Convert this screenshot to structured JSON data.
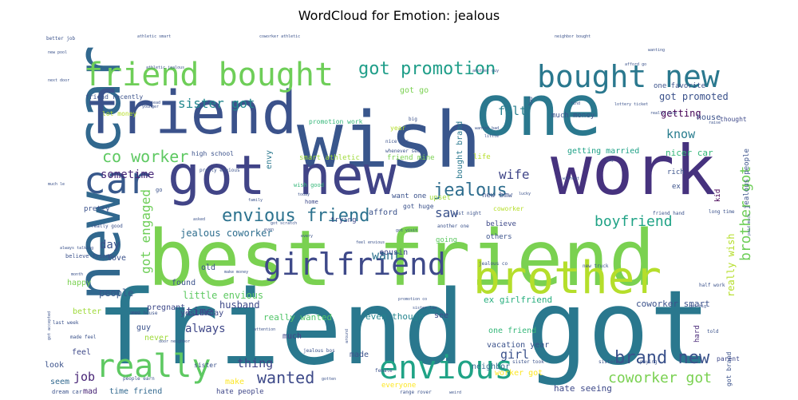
{
  "chart_data": {
    "type": "wordcloud",
    "title": "WordCloud for Emotion: jealous",
    "palette": "viridis",
    "words": [
      {
        "text": "friend got",
        "weight": 100,
        "color": "#2a788e"
      },
      {
        "text": "best friend",
        "weight": 88,
        "color": "#7ad151"
      },
      {
        "text": "wish",
        "weight": 82,
        "color": "#39568c"
      },
      {
        "text": "work",
        "weight": 78,
        "color": "#46327e"
      },
      {
        "text": "one",
        "weight": 74,
        "color": "#2a788e"
      },
      {
        "text": "new car",
        "weight": 68,
        "color": "#31688e"
      },
      {
        "text": "friend",
        "weight": 66,
        "color": "#3b528b"
      },
      {
        "text": "got new",
        "weight": 62,
        "color": "#414487"
      },
      {
        "text": "brother",
        "weight": 48,
        "color": "#b5de2b"
      },
      {
        "text": "envious",
        "weight": 34,
        "color": "#20a386"
      },
      {
        "text": "girlfriend",
        "weight": 32,
        "color": "#3e4989"
      },
      {
        "text": "friend bought",
        "weight": 36,
        "color": "#6ece58"
      },
      {
        "text": "bought new",
        "weight": 34,
        "color": "#2a788e"
      },
      {
        "text": "really",
        "weight": 34,
        "color": "#5ec962"
      },
      {
        "text": "car",
        "weight": 40,
        "color": "#38598c"
      },
      {
        "text": "got promotion",
        "weight": 22,
        "color": "#1f9e89"
      },
      {
        "text": "envious friend",
        "weight": 22,
        "color": "#2c728e"
      },
      {
        "text": "brand new",
        "weight": 20,
        "color": "#3b528b"
      },
      {
        "text": "jealous",
        "weight": 22,
        "color": "#2e6d8e"
      },
      {
        "text": "wanted",
        "weight": 20,
        "color": "#3e4a89"
      },
      {
        "text": "co worker",
        "weight": 18,
        "color": "#5ec962"
      },
      {
        "text": "brother got",
        "weight": 18,
        "color": "#6ece58"
      },
      {
        "text": "coworker got",
        "weight": 17,
        "color": "#7ad151"
      },
      {
        "text": "boyfriend",
        "weight": 17,
        "color": "#20a386"
      },
      {
        "text": "got engaged",
        "weight": 16,
        "color": "#6ece58"
      },
      {
        "text": "sister got",
        "weight": 16,
        "color": "#23888e"
      },
      {
        "text": "wife",
        "weight": 16,
        "color": "#404688"
      },
      {
        "text": "saw",
        "weight": 16,
        "color": "#3b528b"
      },
      {
        "text": "felt",
        "weight": 15,
        "color": "#277f8e"
      },
      {
        "text": "know",
        "weight": 15,
        "color": "#287c8e"
      },
      {
        "text": "girl",
        "weight": 15,
        "color": "#3b528b"
      },
      {
        "text": "thing",
        "weight": 15,
        "color": "#414487"
      },
      {
        "text": "job",
        "weight": 15,
        "color": "#482576"
      },
      {
        "text": "want",
        "weight": 15,
        "color": "#2c728e"
      },
      {
        "text": "always",
        "weight": 14,
        "color": "#3f4788"
      },
      {
        "text": "time",
        "weight": 14,
        "color": "#404688"
      },
      {
        "text": "day",
        "weight": 14,
        "color": "#3b528b"
      },
      {
        "text": "sometime",
        "weight": 14,
        "color": "#482878"
      },
      {
        "text": "jealous coworker",
        "weight": 12,
        "color": "#2e6e8e"
      },
      {
        "text": "husband",
        "weight": 12,
        "color": "#3e4989"
      },
      {
        "text": "people",
        "weight": 12,
        "color": "#38598c"
      },
      {
        "text": "getting",
        "weight": 12,
        "color": "#440154"
      },
      {
        "text": "got promoted",
        "weight": 12,
        "color": "#3b528b"
      },
      {
        "text": "really wish",
        "weight": 12,
        "color": "#b5de2b"
      },
      {
        "text": "little envious",
        "weight": 12,
        "color": "#5ec962"
      },
      {
        "text": "really wanted",
        "weight": 11,
        "color": "#52c569"
      },
      {
        "text": "even though",
        "weight": 11,
        "color": "#25848e"
      },
      {
        "text": "ex girlfriend",
        "weight": 11,
        "color": "#29af7f"
      },
      {
        "text": "coworker smart",
        "weight": 11,
        "color": "#3b528b"
      },
      {
        "text": "nicer car",
        "weight": 11,
        "color": "#35b779"
      },
      {
        "text": "getting married",
        "weight": 10,
        "color": "#1fa187"
      },
      {
        "text": "hate seeing",
        "weight": 11,
        "color": "#3e4989"
      },
      {
        "text": "worker got",
        "weight": 10,
        "color": "#fde725"
      },
      {
        "text": "one friend",
        "weight": 10,
        "color": "#35b779"
      },
      {
        "text": "vacation year",
        "weight": 10,
        "color": "#3b528b"
      },
      {
        "text": "neighbor",
        "weight": 10,
        "color": "#2e6e8e"
      },
      {
        "text": "everyone",
        "weight": 9,
        "color": "#fde725"
      },
      {
        "text": "time friend",
        "weight": 10,
        "color": "#31688e"
      },
      {
        "text": "hate people",
        "weight": 9,
        "color": "#3f4788"
      },
      {
        "text": "make",
        "weight": 10,
        "color": "#fde725"
      },
      {
        "text": "mad",
        "weight": 10,
        "color": "#482576"
      },
      {
        "text": "seem",
        "weight": 10,
        "color": "#31688e"
      },
      {
        "text": "look",
        "weight": 10,
        "color": "#3b528b"
      },
      {
        "text": "feel",
        "weight": 10,
        "color": "#3e4989"
      },
      {
        "text": "never",
        "weight": 10,
        "color": "#9fda3a"
      },
      {
        "text": "guy",
        "weight": 10,
        "color": "#3b528b"
      },
      {
        "text": "better",
        "weight": 10,
        "color": "#9fda3a"
      },
      {
        "text": "happy",
        "weight": 10,
        "color": "#7ad151"
      },
      {
        "text": "love",
        "weight": 10,
        "color": "#3b528b"
      },
      {
        "text": "pregnant",
        "weight": 10,
        "color": "#3e4989"
      },
      {
        "text": "found",
        "weight": 10,
        "color": "#3b528b"
      },
      {
        "text": "old",
        "weight": 10,
        "color": "#3b528b"
      },
      {
        "text": "yesterday",
        "weight": 10,
        "color": "#3e4989"
      },
      {
        "text": "much",
        "weight": 10,
        "color": "#404688"
      },
      {
        "text": "made",
        "weight": 10,
        "color": "#3b528b"
      },
      {
        "text": "see",
        "weight": 10,
        "color": "#3e4989"
      },
      {
        "text": "cousin",
        "weight": 10,
        "color": "#3e4989"
      },
      {
        "text": "afford",
        "weight": 10,
        "color": "#3b528b"
      },
      {
        "text": "want one",
        "weight": 9,
        "color": "#3b528b"
      },
      {
        "text": "believe",
        "weight": 9,
        "color": "#3e4989"
      },
      {
        "text": "others",
        "weight": 9,
        "color": "#3b528b"
      },
      {
        "text": "going",
        "weight": 9,
        "color": "#5ec962"
      },
      {
        "text": "trying",
        "weight": 9,
        "color": "#3e4989"
      },
      {
        "text": "new bmw",
        "weight": 9,
        "color": "#3b528b"
      },
      {
        "text": "house",
        "weight": 10,
        "color": "#3b528b"
      },
      {
        "text": "bought brand",
        "weight": 10,
        "color": "#2a788e"
      },
      {
        "text": "got go",
        "weight": 10,
        "color": "#7ad151"
      },
      {
        "text": "much money",
        "weight": 9,
        "color": "#3b528b"
      },
      {
        "text": "high school",
        "weight": 8,
        "color": "#3b528b"
      },
      {
        "text": "smart athletic",
        "weight": 9,
        "color": "#9fda3a"
      },
      {
        "text": "friend mine",
        "weight": 9,
        "color": "#7ad151"
      },
      {
        "text": "life",
        "weight": 9,
        "color": "#b5de2b"
      },
      {
        "text": "envy",
        "weight": 10,
        "color": "#2a788e"
      },
      {
        "text": "jealous people",
        "weight": 9,
        "color": "#3b528b"
      },
      {
        "text": "pretty",
        "weight": 9,
        "color": "#3b528b"
      },
      {
        "text": "rich",
        "weight": 9,
        "color": "#3b528b"
      },
      {
        "text": "kid",
        "weight": 9,
        "color": "#440154"
      },
      {
        "text": "hard",
        "weight": 9,
        "color": "#482878"
      },
      {
        "text": "ex",
        "weight": 9,
        "color": "#3b528b"
      },
      {
        "text": "upset",
        "weight": 9,
        "color": "#9fda3a"
      },
      {
        "text": "one favorite",
        "weight": 9,
        "color": "#3b528b"
      },
      {
        "text": "thought",
        "weight": 8,
        "color": "#3e4989"
      },
      {
        "text": "got brand",
        "weight": 8,
        "color": "#3b528b"
      },
      {
        "text": "parent",
        "weight": 8,
        "color": "#3e4989"
      },
      {
        "text": "sister",
        "weight": 8,
        "color": "#3b528b"
      },
      {
        "text": "year",
        "weight": 8,
        "color": "#b5de2b"
      },
      {
        "text": "got huge",
        "weight": 8,
        "color": "#3b528b"
      },
      {
        "text": "coworker",
        "weight": 8,
        "color": "#b5de2b"
      },
      {
        "text": "promotion work",
        "weight": 8,
        "color": "#35b779"
      },
      {
        "text": "lot money",
        "weight": 8,
        "color": "#b5de2b"
      },
      {
        "text": "friend recently",
        "weight": 8,
        "color": "#3b528b"
      },
      {
        "text": "home",
        "weight": 7,
        "color": "#3e4989"
      },
      {
        "text": "wish good",
        "weight": 7,
        "color": "#35b779"
      },
      {
        "text": "go",
        "weight": 7,
        "color": "#3b528b"
      },
      {
        "text": "really good",
        "weight": 6,
        "color": "#3b528b"
      },
      {
        "text": "believe friend",
        "weight": 7,
        "color": "#3b528b"
      },
      {
        "text": "pretty envious",
        "weight": 6,
        "color": "#3b528b"
      },
      {
        "text": "nice car",
        "weight": 6,
        "color": "#3b528b"
      },
      {
        "text": "whenever see",
        "weight": 6,
        "color": "#3b528b"
      },
      {
        "text": "last night",
        "weight": 6,
        "color": "#3b528b"
      },
      {
        "text": "another one",
        "weight": 6,
        "color": "#3b528b"
      },
      {
        "text": "jealous co",
        "weight": 6,
        "color": "#3b528b"
      },
      {
        "text": "new truck",
        "weight": 6,
        "color": "#3b528b"
      },
      {
        "text": "friend hand",
        "weight": 6,
        "color": "#3b528b"
      },
      {
        "text": "long time",
        "weight": 6,
        "color": "#3b528b"
      },
      {
        "text": "new house",
        "weight": 6,
        "color": "#3b528b"
      },
      {
        "text": "last week",
        "weight": 6,
        "color": "#3b528b"
      },
      {
        "text": "made feel",
        "weight": 6,
        "color": "#3b528b"
      },
      {
        "text": "dream car",
        "weight": 7,
        "color": "#3b528b"
      },
      {
        "text": "people earn",
        "weight": 6,
        "color": "#3b528b"
      },
      {
        "text": "range rover",
        "weight": 6,
        "color": "#3b528b"
      },
      {
        "text": "sister took",
        "weight": 6,
        "color": "#3b528b"
      },
      {
        "text": "sister went",
        "weight": 6,
        "color": "#3b528b"
      },
      {
        "text": "half work",
        "weight": 6,
        "color": "#3b528b"
      },
      {
        "text": "got big",
        "weight": 5,
        "color": "#3b528b"
      },
      {
        "text": "told",
        "weight": 6,
        "color": "#3b528b"
      },
      {
        "text": "paying",
        "weight": 6,
        "color": "#3b528b"
      },
      {
        "text": "jealous bos",
        "weight": 6,
        "color": "#3b528b"
      },
      {
        "text": "female",
        "weight": 6,
        "color": "#3b528b"
      },
      {
        "text": "better job",
        "weight": 6,
        "color": "#3b528b"
      },
      {
        "text": "new pool",
        "weight": 5,
        "color": "#3b528b"
      },
      {
        "text": "next door",
        "weight": 5,
        "color": "#3b528b"
      },
      {
        "text": "younger",
        "weight": 5,
        "color": "#3b528b"
      },
      {
        "text": "instead",
        "weight": 5,
        "color": "#3b528b"
      },
      {
        "text": "athletic smart",
        "weight": 5,
        "color": "#3b528b"
      },
      {
        "text": "coworker athletic",
        "weight": 5,
        "color": "#3b528b"
      },
      {
        "text": "neighbor bought",
        "weight": 5,
        "color": "#3b528b"
      },
      {
        "text": "wanting",
        "weight": 5,
        "color": "#3b528b"
      },
      {
        "text": "afford go",
        "weight": 5,
        "color": "#3b528b"
      },
      {
        "text": "another guy",
        "weight": 5,
        "color": "#3b528b"
      },
      {
        "text": "bad",
        "weight": 6,
        "color": "#3b528b"
      },
      {
        "text": "find",
        "weight": 5,
        "color": "#3b528b"
      },
      {
        "text": "lottery ticket",
        "weight": 5,
        "color": "#3b528b"
      },
      {
        "text": "really nice",
        "weight": 5,
        "color": "#3b528b"
      },
      {
        "text": "raise",
        "weight": 5,
        "color": "#3b528b"
      },
      {
        "text": "wanted bad",
        "weight": 5,
        "color": "#3b528b"
      },
      {
        "text": "big",
        "weight": 6,
        "color": "#3b528b"
      },
      {
        "text": "little",
        "weight": 5,
        "color": "#3b528b"
      },
      {
        "text": "without",
        "weight": 5,
        "color": "#3b528b"
      },
      {
        "text": "buy",
        "weight": 5,
        "color": "#3b528b"
      },
      {
        "text": "lucky",
        "weight": 5,
        "color": "#3b528b"
      },
      {
        "text": "today",
        "weight": 5,
        "color": "#3b528b"
      },
      {
        "text": "much le",
        "weight": 5,
        "color": "#3b528b"
      },
      {
        "text": "family",
        "weight": 5,
        "color": "#3b528b"
      },
      {
        "text": "asked",
        "weight": 5,
        "color": "#3b528b"
      },
      {
        "text": "got scratch",
        "weight": 5,
        "color": "#3b528b"
      },
      {
        "text": "always talking",
        "weight": 5,
        "color": "#3b528b"
      },
      {
        "text": "even",
        "weight": 5,
        "color": "#3b528b"
      },
      {
        "text": "every",
        "weight": 5,
        "color": "#3b528b"
      },
      {
        "text": "got visit",
        "weight": 5,
        "color": "#3b528b"
      },
      {
        "text": "feel envious",
        "weight": 5,
        "color": "#3b528b"
      },
      {
        "text": "promotion co",
        "weight": 5,
        "color": "#3b528b"
      },
      {
        "text": "month",
        "weight": 5,
        "color": "#3b528b"
      },
      {
        "text": "make money",
        "weight": 5,
        "color": "#3b528b"
      },
      {
        "text": "good",
        "weight": 5,
        "color": "#3b528b"
      },
      {
        "text": "attention",
        "weight": 5,
        "color": "#3b528b"
      },
      {
        "text": "around",
        "weight": 5,
        "color": "#3b528b"
      },
      {
        "text": "gotten",
        "weight": 5,
        "color": "#3b528b"
      },
      {
        "text": "weird",
        "weight": 5,
        "color": "#3b528b"
      },
      {
        "text": "got accepted",
        "weight": 5,
        "color": "#3b528b"
      },
      {
        "text": "door neighbor",
        "weight": 5,
        "color": "#3b528b"
      },
      {
        "text": "sister law",
        "weight": 5,
        "color": "#3b528b"
      },
      {
        "text": "paid much",
        "weight": 5,
        "color": "#3b528b"
      },
      {
        "text": "athletic jealous",
        "weight": 5,
        "color": "#3b528b"
      }
    ]
  }
}
